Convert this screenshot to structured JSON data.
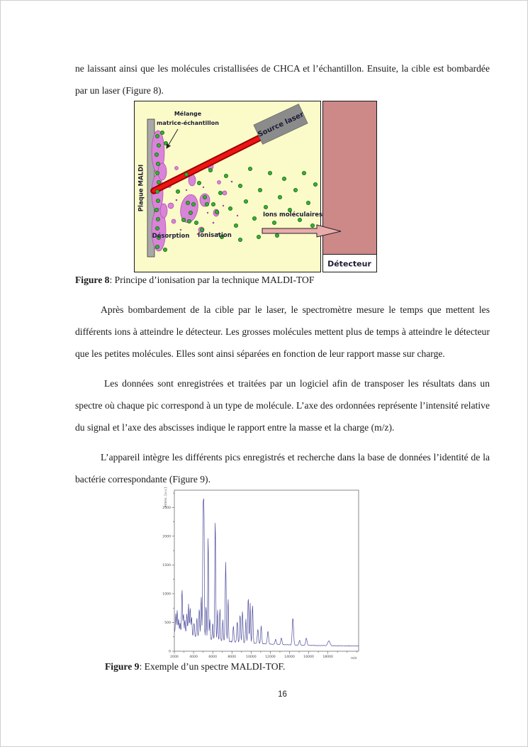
{
  "document": {
    "page_number": "16",
    "paragraphs": {
      "p1": "ne laissant ainsi que les molécules cristallisées de CHCA et l’échantillon. Ensuite, la cible est bombardée par un laser (Figure 8).",
      "p2": "Après bombardement de la cible par le laser, le spectromètre mesure le temps que mettent les différents ions à atteindre le détecteur. Les grosses molécules mettent plus de temps à atteindre le détecteur que les petites molécules. Elles sont ainsi séparées en fonction de leur rapport masse sur charge.",
      "p3": "Les données sont enregistrées et traitées par un logiciel afin de transposer les résultats dans un spectre où chaque pic correspond à un type de molécule. L’axe des ordonnées représente l’intensité relative du signal et l’axe des abscisses indique le rapport entre la masse et la charge (m/z).",
      "p4": "L’appareil intègre les différents pics enregistrés et recherche dans la base de données l’identité de la bactérie correspondante (Figure 9)."
    },
    "figure8_caption": {
      "label": "Figure 8",
      "text": ": Principe d’ionisation par la technique MALDI-TOF"
    },
    "figure9_caption": {
      "label": "Figure 9",
      "text": ": Exemple d’un spectre MALDI-TOF."
    }
  },
  "figure8": {
    "labels": {
      "melange_line1": "Mélange",
      "melange_line2": "matrice-échantillon",
      "source_laser": "Source laser",
      "plaque_maldi": "Plaque MALDI",
      "desorption": "Désorption",
      "ionisation": "Ionisation",
      "ions_moleculaires": "Ions moléculaires",
      "detecteur": "Détecteur"
    },
    "colors": {
      "background_yellow": "#fbfbc9",
      "detector_pink": "#cd8888",
      "laser_red": "#ee1414",
      "laser_dark_red": "#990000",
      "matrix_purple": "#d983d9",
      "ion_green": "#35b135",
      "source_gray": "#8b8b8b",
      "plate_gray": "#a8a8a8",
      "arrow_pink": "#eaabab"
    }
  },
  "chart_data": {
    "type": "line",
    "title": "",
    "xlabel": "m/z",
    "ylabel": "Intens. [a.u.]",
    "xlim": [
      2000,
      21200
    ],
    "ylim": [
      0,
      2800
    ],
    "x_ticks": [
      2000,
      4000,
      6000,
      8000,
      10000,
      12000,
      14000,
      16000,
      18000
    ],
    "y_ticks": [
      0,
      500,
      1000,
      1500,
      2000,
      2500
    ],
    "x_minor_step": 1000,
    "y_minor_step": 250,
    "grid": false,
    "legend": "none",
    "line_color": "#4f4f9d",
    "baseline": {
      "start": 345,
      "floor": 85,
      "decay": 5200
    },
    "peaks": [
      [
        2150,
        650,
        90
      ],
      [
        2300,
        720,
        90
      ],
      [
        2450,
        560,
        90
      ],
      [
        2600,
        500,
        90
      ],
      [
        2800,
        1080,
        100
      ],
      [
        2950,
        650,
        90
      ],
      [
        3100,
        540,
        90
      ],
      [
        3300,
        660,
        100
      ],
      [
        3480,
        820,
        100
      ],
      [
        3650,
        760,
        100
      ],
      [
        3800,
        580,
        100
      ],
      [
        4050,
        500,
        100
      ],
      [
        4350,
        580,
        100
      ],
      [
        4600,
        740,
        100
      ],
      [
        4800,
        950,
        100
      ],
      [
        5000,
        2570,
        100
      ],
      [
        5090,
        2240,
        80
      ],
      [
        5300,
        800,
        90
      ],
      [
        5520,
        2030,
        90
      ],
      [
        5700,
        560,
        90
      ],
      [
        6000,
        500,
        90
      ],
      [
        6260,
        2320,
        100
      ],
      [
        6500,
        720,
        90
      ],
      [
        6750,
        760,
        90
      ],
      [
        7050,
        560,
        90
      ],
      [
        7350,
        1560,
        110
      ],
      [
        7600,
        920,
        90
      ],
      [
        8150,
        440,
        110
      ],
      [
        8550,
        520,
        110
      ],
      [
        8850,
        640,
        110
      ],
      [
        9100,
        700,
        110
      ],
      [
        9450,
        560,
        100
      ],
      [
        9700,
        940,
        110
      ],
      [
        9900,
        840,
        90
      ],
      [
        10150,
        800,
        110
      ],
      [
        10700,
        380,
        130
      ],
      [
        11050,
        440,
        120
      ],
      [
        11750,
        350,
        140
      ],
      [
        12550,
        210,
        140
      ],
      [
        13150,
        230,
        140
      ],
      [
        14350,
        580,
        150
      ],
      [
        15050,
        190,
        140
      ],
      [
        15750,
        230,
        150
      ],
      [
        18100,
        180,
        250
      ]
    ]
  }
}
